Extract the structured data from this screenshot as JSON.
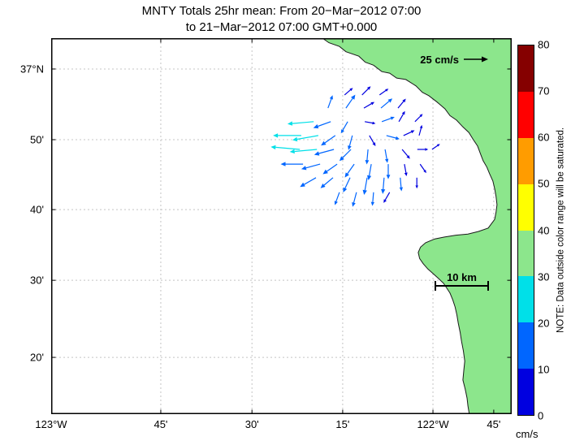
{
  "title": {
    "line1": "MNTY Totals 25hr mean: From 20−Mar−2012 07:00",
    "line2": "to 21−Mar−2012 07:00 GMT+0.000"
  },
  "chart_data": {
    "type": "quiver-map",
    "title": "MNTY Totals 25hr mean: From 20−Mar−2012 07:00 to 21−Mar−2012 07:00 GMT+0.000",
    "x_axis": {
      "ticks": [
        {
          "label": "123°W",
          "pct": 0
        },
        {
          "label": "45'",
          "pct": 23.8
        },
        {
          "label": "30'",
          "pct": 43.6
        },
        {
          "label": "15'",
          "pct": 63.3
        },
        {
          "label": "122°W",
          "pct": 82.9
        },
        {
          "label": "45'",
          "pct": 96.1
        }
      ]
    },
    "y_axis": {
      "ticks": [
        {
          "label": "37°N",
          "pct": 8.2
        },
        {
          "label": "50'",
          "pct": 27.0
        },
        {
          "label": "40'",
          "pct": 45.6
        },
        {
          "label": "30'",
          "pct": 64.4
        },
        {
          "label": "20'",
          "pct": 84.9
        }
      ]
    },
    "grid": true,
    "land_color": "#8CE68C",
    "coast_color": "#1a1a1a",
    "grid_color": "#c4c4c4",
    "coast_polygon_pct": [
      [
        58.9,
        0
      ],
      [
        60.3,
        1.2
      ],
      [
        62.6,
        2.2
      ],
      [
        64.0,
        3.6
      ],
      [
        66.8,
        4.8
      ],
      [
        68.2,
        6.4
      ],
      [
        70.0,
        7.2
      ],
      [
        71.8,
        8.9
      ],
      [
        73.5,
        9.3
      ],
      [
        75.0,
        10.6
      ],
      [
        77.0,
        11.0
      ],
      [
        79.2,
        12.7
      ],
      [
        80.6,
        14.4
      ],
      [
        82.0,
        15.3
      ],
      [
        83.8,
        17.0
      ],
      [
        85.5,
        18.8
      ],
      [
        86.6,
        20.6
      ],
      [
        88.0,
        21.8
      ],
      [
        89.4,
        23.6
      ],
      [
        90.7,
        25.1
      ],
      [
        91.6,
        26.9
      ],
      [
        92.6,
        28.7
      ],
      [
        93.2,
        30.7
      ],
      [
        93.8,
        32.6
      ],
      [
        94.6,
        34.3
      ],
      [
        95.2,
        36.1
      ],
      [
        95.9,
        38.0
      ],
      [
        96.3,
        40.0
      ],
      [
        96.6,
        42.1
      ],
      [
        96.8,
        44.3
      ],
      [
        96.6,
        46.3
      ],
      [
        96.3,
        48.2
      ],
      [
        94.9,
        50.5
      ],
      [
        92.8,
        51.4
      ],
      [
        90.5,
        52.1
      ],
      [
        87.9,
        52.4
      ],
      [
        85.4,
        52.9
      ],
      [
        83.3,
        53.4
      ],
      [
        81.3,
        54.4
      ],
      [
        80.2,
        55.6
      ],
      [
        79.7,
        57.0
      ],
      [
        80.0,
        58.6
      ],
      [
        80.8,
        60.0
      ],
      [
        81.8,
        61.4
      ],
      [
        82.9,
        62.6
      ],
      [
        84.1,
        63.9
      ],
      [
        85.2,
        65.2
      ],
      [
        85.9,
        66.5
      ],
      [
        86.6,
        67.8
      ],
      [
        87.2,
        69.6
      ],
      [
        87.7,
        71.5
      ],
      [
        88.1,
        73.6
      ],
      [
        88.4,
        75.8
      ],
      [
        88.8,
        78.2
      ],
      [
        89.1,
        80.6
      ],
      [
        89.5,
        83.2
      ],
      [
        89.8,
        85.9
      ],
      [
        89.6,
        88.4
      ],
      [
        89.4,
        90.9
      ],
      [
        89.9,
        93.3
      ],
      [
        90.3,
        95.7
      ],
      [
        90.5,
        97.8
      ],
      [
        90.8,
        100
      ],
      [
        100,
        100
      ],
      [
        100,
        0
      ]
    ],
    "colorbar": {
      "units": "cm/s",
      "note": "NOTE: Data outside color range will be saturated.",
      "min": 0,
      "max": 80,
      "ticks": [
        0,
        10,
        20,
        30,
        40,
        50,
        60,
        70,
        80
      ],
      "segment_colors_bottom_to_top": [
        "#0000E0",
        "#0066FF",
        "#00E0E8",
        "#8CE68C",
        "#FFFF00",
        "#FF9C00",
        "#FF0000",
        "#850000"
      ]
    },
    "reference_vector": {
      "label": "25 cm/s",
      "speed_cm_s": 25
    },
    "scale_bar": {
      "label": "10 km"
    },
    "vector_fields": [
      "x_pct",
      "y_pct",
      "dir_deg_ccw_from_east",
      "speed_cm_s"
    ],
    "vectors": [
      [
        63.7,
        15.1,
        40,
        8
      ],
      [
        67.5,
        15.1,
        45,
        9
      ],
      [
        71.3,
        15.1,
        35,
        8
      ],
      [
        60.1,
        18.6,
        70,
        10
      ],
      [
        64.0,
        18.6,
        55,
        12
      ],
      [
        67.9,
        18.6,
        30,
        9
      ],
      [
        71.6,
        18.6,
        40,
        11
      ],
      [
        75.3,
        18.6,
        50,
        9
      ],
      [
        57.0,
        22.2,
        185,
        22
      ],
      [
        60.7,
        22.2,
        200,
        14
      ],
      [
        64.4,
        22.2,
        240,
        10
      ],
      [
        68.1,
        22.2,
        350,
        8
      ],
      [
        71.8,
        22.2,
        20,
        10
      ],
      [
        75.5,
        22.2,
        60,
        9
      ],
      [
        79.0,
        22.2,
        45,
        8
      ],
      [
        54.3,
        25.9,
        180,
        24
      ],
      [
        58.0,
        25.9,
        190,
        22
      ],
      [
        61.7,
        25.9,
        215,
        13
      ],
      [
        65.4,
        25.9,
        255,
        11
      ],
      [
        69.1,
        25.9,
        300,
        9
      ],
      [
        72.8,
        25.9,
        345,
        10
      ],
      [
        76.5,
        25.9,
        25,
        9
      ],
      [
        79.9,
        25.9,
        75,
        8
      ],
      [
        54.0,
        29.6,
        175,
        25
      ],
      [
        57.7,
        29.6,
        185,
        23
      ],
      [
        61.4,
        29.6,
        195,
        16
      ],
      [
        65.1,
        29.6,
        225,
        12
      ],
      [
        68.8,
        29.6,
        265,
        11
      ],
      [
        72.5,
        29.6,
        280,
        10
      ],
      [
        76.2,
        29.6,
        310,
        9
      ],
      [
        79.5,
        29.6,
        0,
        8
      ],
      [
        82.7,
        29.6,
        35,
        7
      ],
      [
        54.7,
        33.5,
        180,
        18
      ],
      [
        58.4,
        33.5,
        195,
        15
      ],
      [
        62.1,
        33.5,
        215,
        13
      ],
      [
        65.8,
        33.5,
        235,
        12
      ],
      [
        69.5,
        33.5,
        260,
        12
      ],
      [
        73.2,
        33.5,
        270,
        11
      ],
      [
        76.7,
        33.5,
        280,
        9
      ],
      [
        80.1,
        33.5,
        305,
        8
      ],
      [
        57.5,
        37.1,
        210,
        14
      ],
      [
        61.2,
        37.1,
        220,
        12
      ],
      [
        64.9,
        37.1,
        245,
        12
      ],
      [
        68.6,
        37.1,
        260,
        13
      ],
      [
        72.3,
        37.1,
        265,
        12
      ],
      [
        75.8,
        37.1,
        275,
        10
      ],
      [
        79.4,
        37.1,
        270,
        8
      ],
      [
        62.6,
        41.0,
        250,
        10
      ],
      [
        66.3,
        41.0,
        255,
        11
      ],
      [
        70.0,
        41.0,
        265,
        10
      ],
      [
        73.5,
        41.0,
        240,
        9
      ]
    ]
  }
}
